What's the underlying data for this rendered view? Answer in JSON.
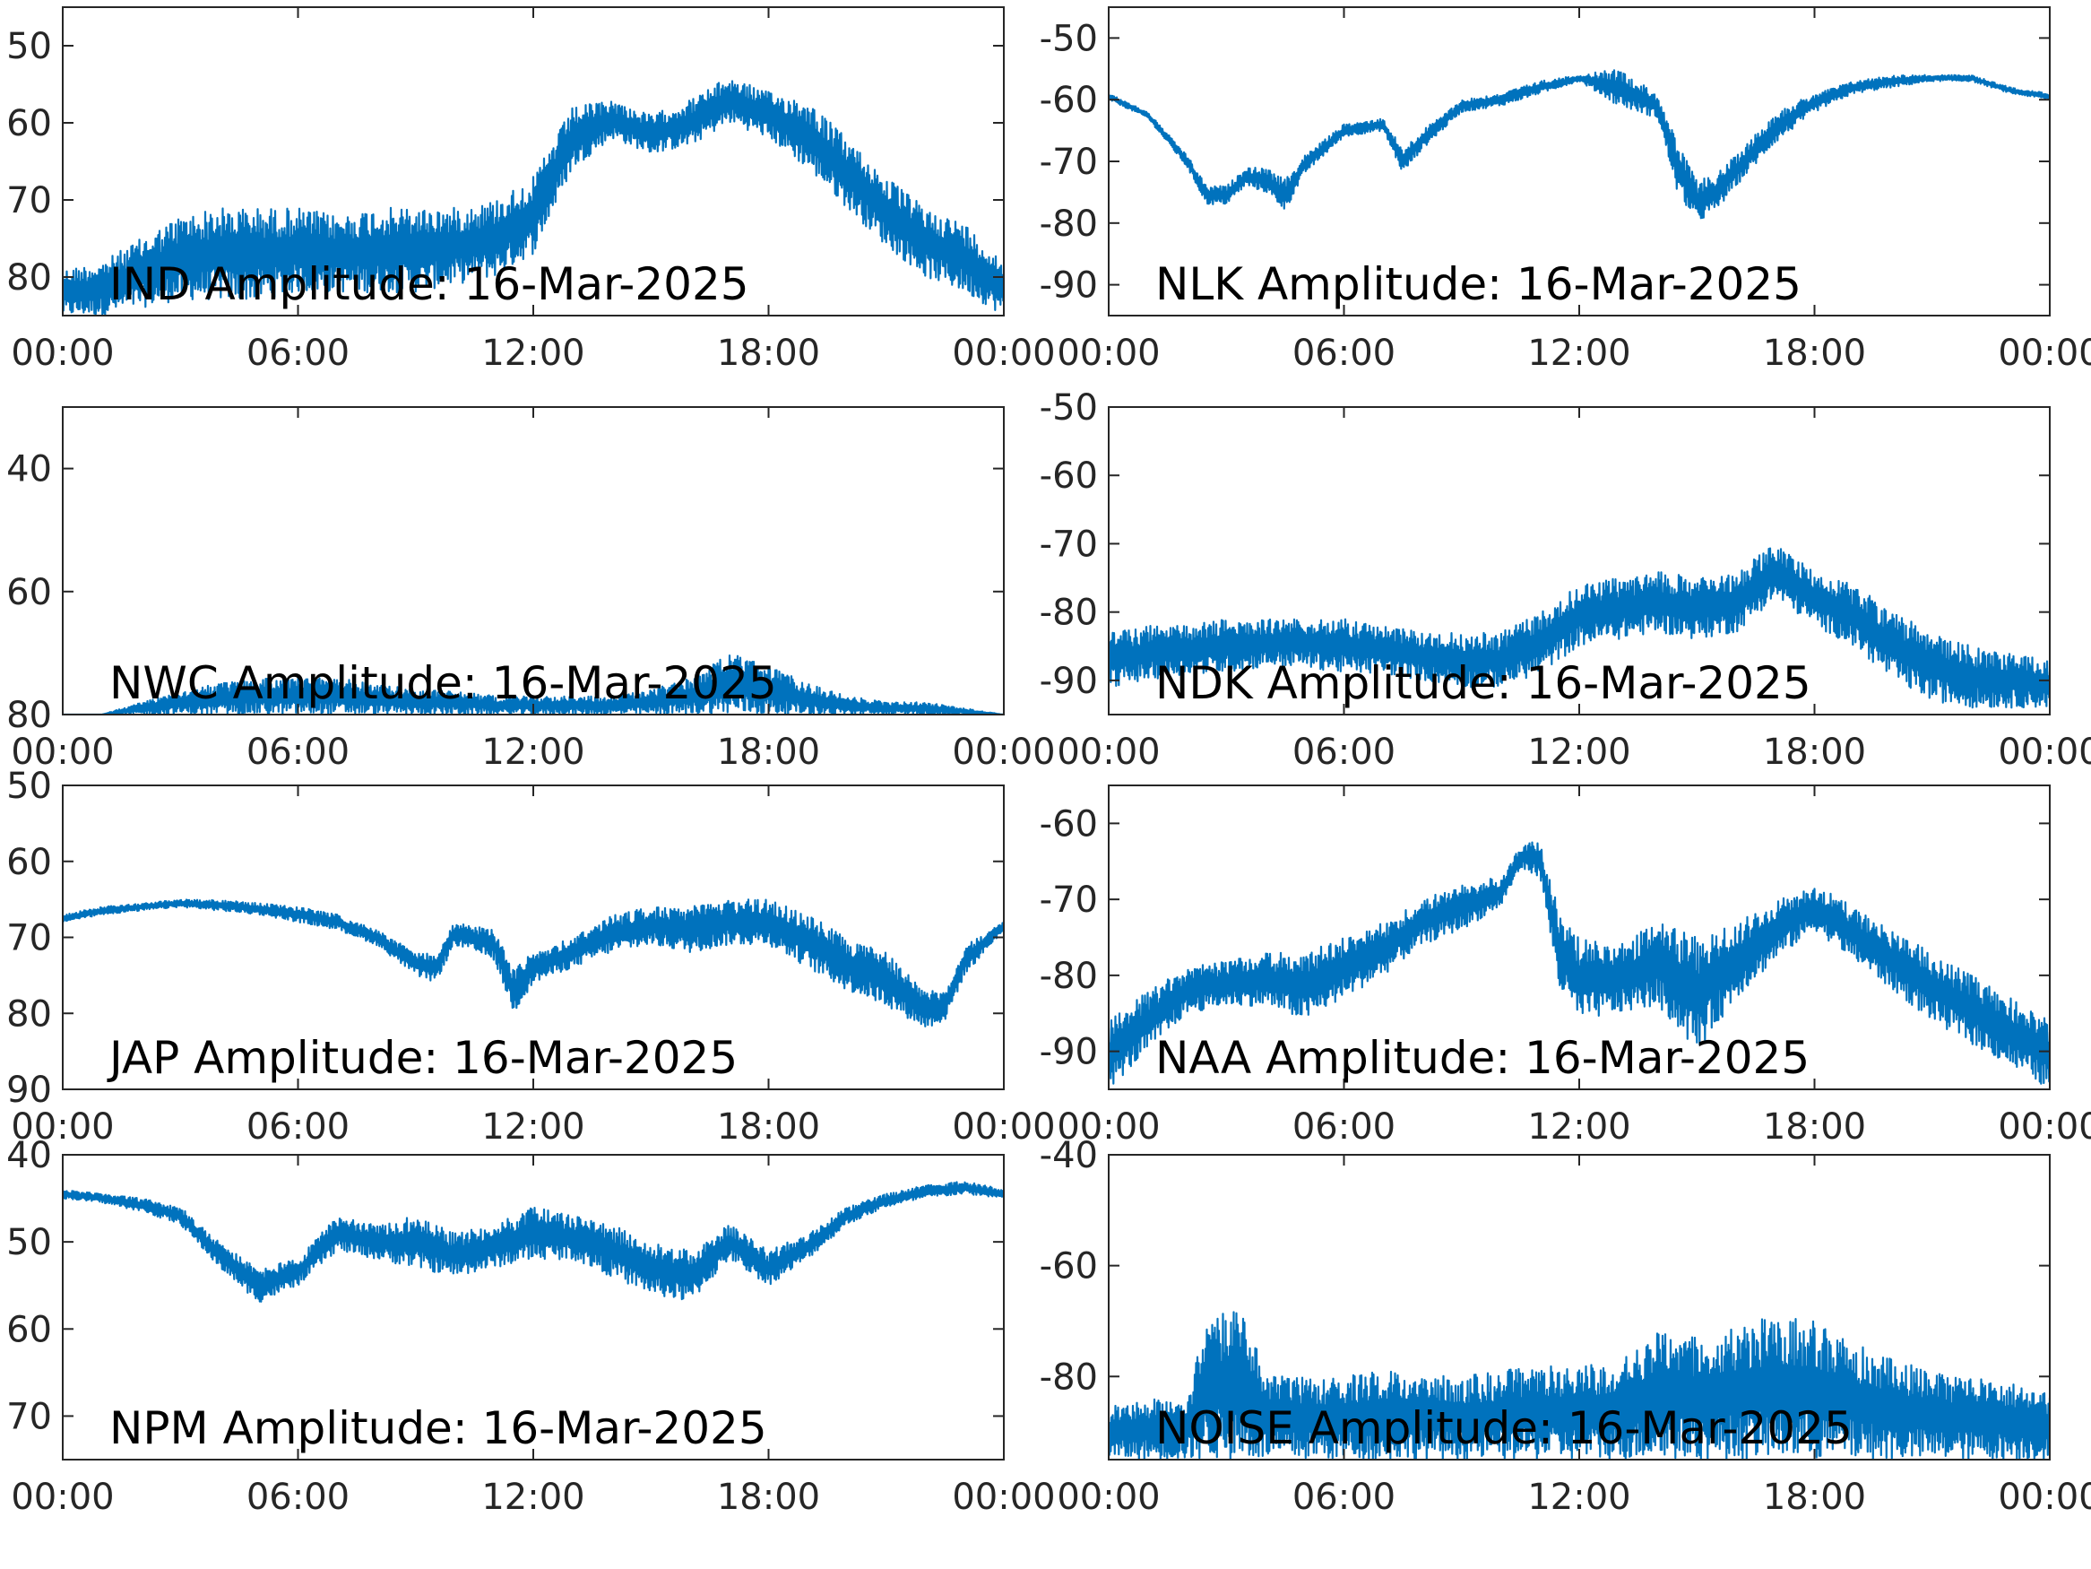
{
  "figure": {
    "line_color": "#0072BD"
  },
  "chart_data": [
    {
      "type": "line",
      "title": "IND Amplitude: 16-Mar-2025",
      "x_ticks": [
        "00:00",
        "06:00",
        "12:00",
        "18:00",
        "00:00"
      ],
      "y_ticks": [
        -50,
        -60,
        -70,
        -80
      ],
      "y_tick_labels": [
        "50",
        "60",
        "70",
        "80"
      ],
      "ylim": [
        -85,
        -45
      ],
      "grid": false,
      "series": [
        {
          "x_hours": [
            0,
            1,
            2,
            3,
            4,
            5,
            6,
            7,
            8,
            9,
            10,
            11,
            12,
            13,
            14,
            15,
            16,
            17,
            18,
            19,
            20,
            21,
            22,
            23,
            24
          ],
          "upper": [
            -79,
            -78,
            -75,
            -72,
            -71,
            -71,
            -71,
            -72,
            -71,
            -71,
            -71,
            -70,
            -67,
            -58,
            -57,
            -59,
            -57,
            -54,
            -56,
            -57,
            -62,
            -67,
            -71,
            -73,
            -78
          ],
          "lower": [
            -85,
            -85,
            -84,
            -83,
            -83,
            -83,
            -82,
            -82,
            -82,
            -82,
            -81,
            -80,
            -77,
            -66,
            -62,
            -64,
            -63,
            -60,
            -62,
            -66,
            -71,
            -76,
            -80,
            -82,
            -85
          ]
        }
      ]
    },
    {
      "type": "line",
      "title": "NLK Amplitude: 16-Mar-2025",
      "x_ticks": [
        "00:00",
        "06:00",
        "12:00",
        "18:00",
        "00:00"
      ],
      "y_ticks": [
        -50,
        -60,
        -70,
        -80,
        -90
      ],
      "y_tick_labels": [
        "-50",
        "-60",
        "-70",
        "-80",
        "-90"
      ],
      "ylim": [
        -95,
        -45
      ],
      "grid": false,
      "series": [
        {
          "x_hours": [
            0,
            1,
            2,
            2.5,
            3,
            3.5,
            4,
            4.5,
            5,
            6,
            7,
            7.5,
            8,
            9,
            10,
            11,
            12,
            13,
            14,
            14.5,
            15,
            15.5,
            16,
            17,
            18,
            19,
            20,
            21,
            22,
            23,
            24
          ],
          "upper": [
            -59,
            -62,
            -69,
            -74,
            -74,
            -71,
            -71,
            -73,
            -69,
            -64,
            -63,
            -68,
            -65,
            -60,
            -59,
            -57,
            -56,
            -55,
            -59,
            -67,
            -73,
            -72,
            -69,
            -62,
            -59,
            -57,
            -56,
            -56,
            -56,
            -58,
            -59
          ],
          "lower": [
            -60,
            -63,
            -71,
            -77,
            -77,
            -74,
            -75,
            -78,
            -72,
            -66,
            -65,
            -72,
            -68,
            -62,
            -61,
            -59,
            -57,
            -61,
            -63,
            -75,
            -80,
            -78,
            -74,
            -67,
            -62,
            -59,
            -58,
            -57,
            -57,
            -59,
            -60
          ]
        }
      ]
    },
    {
      "type": "line",
      "title": "NWC Amplitude: 16-Mar-2025",
      "x_ticks": [
        "00:00",
        "06:00",
        "12:00",
        "18:00",
        "00:00"
      ],
      "y_ticks": [
        -40,
        -60,
        -80
      ],
      "y_tick_labels": [
        "40",
        "60",
        "80"
      ],
      "ylim": [
        -80,
        -30
      ],
      "grid": false,
      "series": [
        {
          "x_hours": [
            0,
            1,
            2,
            3,
            4,
            5,
            6,
            7,
            8,
            9,
            10,
            11,
            12,
            13,
            14,
            15,
            16,
            17,
            18,
            19,
            20,
            21,
            22,
            23,
            24
          ],
          "upper": [
            -80,
            -80,
            -78,
            -76,
            -75,
            -74,
            -74,
            -74,
            -75,
            -76,
            -76,
            -77,
            -77,
            -77,
            -77,
            -76,
            -74,
            -70,
            -72,
            -75,
            -77,
            -78,
            -78,
            -79,
            -80
          ],
          "lower": [
            -80,
            -80,
            -80,
            -80,
            -80,
            -80,
            -80,
            -80,
            -80,
            -80,
            -80,
            -80,
            -80,
            -80,
            -80,
            -80,
            -80,
            -80,
            -80,
            -80,
            -80,
            -80,
            -80,
            -80,
            -80
          ]
        }
      ]
    },
    {
      "type": "line",
      "title": "NDK Amplitude: 16-Mar-2025",
      "x_ticks": [
        "00:00",
        "06:00",
        "12:00",
        "18:00",
        "00:00"
      ],
      "y_ticks": [
        -50,
        -60,
        -70,
        -80,
        -90
      ],
      "y_tick_labels": [
        "-50",
        "-60",
        "-70",
        "-80",
        "-90"
      ],
      "ylim": [
        -95,
        -50
      ],
      "grid": false,
      "series": [
        {
          "x_hours": [
            0,
            1,
            2,
            3,
            4,
            5,
            6,
            7,
            8,
            9,
            10,
            11,
            12,
            13,
            14,
            15,
            16,
            17,
            18,
            19,
            20,
            21,
            22,
            23,
            24
          ],
          "upper": [
            -83,
            -82,
            -82,
            -81,
            -81,
            -81,
            -81,
            -82,
            -83,
            -83,
            -83,
            -80,
            -76,
            -75,
            -74,
            -75,
            -74,
            -70,
            -74,
            -76,
            -80,
            -83,
            -85,
            -86,
            -87
          ],
          "lower": [
            -91,
            -90,
            -89,
            -89,
            -88,
            -88,
            -89,
            -89,
            -90,
            -91,
            -91,
            -89,
            -85,
            -84,
            -83,
            -84,
            -83,
            -78,
            -82,
            -85,
            -90,
            -93,
            -94,
            -94,
            -94
          ]
        }
      ]
    },
    {
      "type": "line",
      "title": "JAP Amplitude: 16-Mar-2025",
      "x_ticks": [
        "00:00",
        "06:00",
        "12:00",
        "18:00",
        "00:00"
      ],
      "y_ticks": [
        -50,
        -60,
        -70,
        -80,
        -90
      ],
      "y_tick_labels": [
        "50",
        "60",
        "70",
        "80",
        "90"
      ],
      "ylim": [
        -90,
        -50
      ],
      "grid": false,
      "series": [
        {
          "x_hours": [
            0,
            1,
            2,
            3,
            4,
            5,
            6,
            7,
            8,
            9,
            9.5,
            10,
            11,
            11.5,
            12,
            13,
            14,
            15,
            16,
            17,
            18,
            19,
            20,
            21,
            22,
            22.5,
            23,
            24
          ],
          "upper": [
            -67,
            -66,
            -65.5,
            -65,
            -65,
            -65.5,
            -66,
            -67,
            -69,
            -72,
            -72,
            -68,
            -69,
            -74,
            -72,
            -70,
            -67,
            -66,
            -66,
            -65,
            -65,
            -67,
            -70,
            -72,
            -77,
            -77,
            -71,
            -68
          ],
          "lower": [
            -68,
            -67,
            -66.5,
            -66,
            -66.5,
            -67,
            -68,
            -69,
            -71,
            -75,
            -76,
            -71,
            -73,
            -80,
            -76,
            -74,
            -72,
            -71,
            -72,
            -71,
            -71,
            -74,
            -77,
            -79,
            -82,
            -81,
            -75,
            -69
          ]
        }
      ]
    },
    {
      "type": "line",
      "title": "NAA Amplitude: 16-Mar-2025",
      "x_ticks": [
        "00:00",
        "06:00",
        "12:00",
        "18:00",
        "00:00"
      ],
      "y_ticks": [
        -60,
        -70,
        -80,
        -90
      ],
      "y_tick_labels": [
        "-60",
        "-70",
        "-80",
        "-90"
      ],
      "ylim": [
        -95,
        -55
      ],
      "grid": false,
      "series": [
        {
          "x_hours": [
            0,
            1,
            2,
            3,
            4,
            5,
            6,
            7,
            8,
            9,
            10,
            10.5,
            11,
            11.5,
            12,
            13,
            14,
            15,
            16,
            17,
            18,
            19,
            20,
            21,
            22,
            23,
            24
          ],
          "upper": [
            -86,
            -82,
            -79,
            -78,
            -77,
            -77,
            -75,
            -73,
            -70,
            -68,
            -67,
            -63,
            -62,
            -72,
            -75,
            -76,
            -73,
            -75,
            -73,
            -70,
            -68,
            -71,
            -74,
            -77,
            -80,
            -83,
            -86
          ],
          "lower": [
            -95,
            -90,
            -85,
            -84,
            -84,
            -86,
            -83,
            -80,
            -76,
            -74,
            -71,
            -66,
            -67,
            -82,
            -86,
            -85,
            -84,
            -90,
            -83,
            -78,
            -74,
            -78,
            -82,
            -86,
            -89,
            -92,
            -95
          ]
        }
      ]
    },
    {
      "type": "line",
      "title": "NPM Amplitude: 16-Mar-2025",
      "x_ticks": [
        "00:00",
        "06:00",
        "12:00",
        "18:00",
        "00:00"
      ],
      "y_ticks": [
        -40,
        -50,
        -60,
        -70
      ],
      "y_tick_labels": [
        "40",
        "50",
        "60",
        "70"
      ],
      "ylim": [
        -75,
        -40
      ],
      "grid": false,
      "series": [
        {
          "x_hours": [
            0,
            1,
            2,
            3,
            4,
            5,
            6,
            7,
            8,
            9,
            10,
            11,
            12,
            13,
            14,
            15,
            16,
            17,
            18,
            19,
            20,
            21,
            22,
            23,
            24
          ],
          "upper": [
            -44,
            -44.5,
            -45,
            -46,
            -50,
            -53,
            -52,
            -47,
            -48,
            -47,
            -49,
            -48,
            -46,
            -47,
            -48,
            -50,
            -51,
            -48,
            -51,
            -49,
            -46,
            -44.5,
            -43.5,
            -43,
            -44
          ],
          "lower": [
            -45,
            -45.5,
            -46.5,
            -48,
            -53,
            -57,
            -55,
            -51,
            -52,
            -53,
            -54,
            -53,
            -52,
            -52,
            -54,
            -56,
            -57,
            -52,
            -55,
            -52,
            -48,
            -46,
            -45,
            -44.5,
            -45
          ]
        }
      ]
    },
    {
      "type": "line",
      "title": "NOISE Amplitude: 16-Mar-2025",
      "x_ticks": [
        "00:00",
        "06:00",
        "12:00",
        "18:00",
        "00:00"
      ],
      "y_ticks": [
        -40,
        -60,
        -80
      ],
      "y_tick_labels": [
        "-40",
        "-60",
        "-80"
      ],
      "ylim": [
        -95,
        -40
      ],
      "grid": false,
      "series": [
        {
          "x_hours": [
            0,
            1,
            2,
            2.5,
            3,
            3.5,
            4,
            5,
            6,
            7,
            8,
            9,
            10,
            11,
            12,
            13,
            14,
            15,
            16,
            17,
            18,
            19,
            20,
            21,
            22,
            23,
            24
          ],
          "upper": [
            -85,
            -84,
            -84,
            -68,
            -68,
            -69,
            -80,
            -80,
            -80,
            -79,
            -79,
            -80,
            -79,
            -78,
            -78,
            -77,
            -72,
            -73,
            -71,
            -69,
            -70,
            -74,
            -77,
            -79,
            -80,
            -81,
            -83
          ],
          "lower": [
            -95,
            -95,
            -95,
            -95,
            -95,
            -95,
            -95,
            -95,
            -95,
            -95,
            -95,
            -95,
            -95,
            -95,
            -95,
            -95,
            -95,
            -95,
            -95,
            -95,
            -95,
            -95,
            -95,
            -95,
            -95,
            -95,
            -95
          ]
        }
      ]
    }
  ]
}
